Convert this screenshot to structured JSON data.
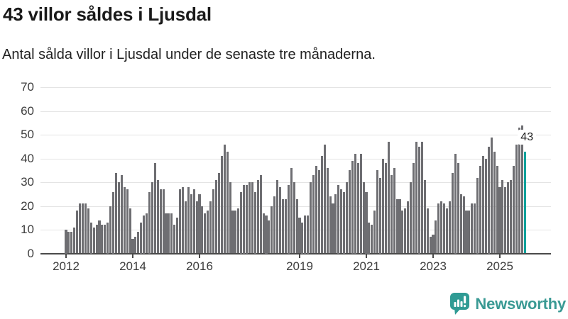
{
  "header": {
    "title": "43 villor såldes i Ljusdal",
    "subtitle": "Antal sålda villor i Ljusdal under de senaste tre månaderna."
  },
  "chart_data": {
    "type": "bar",
    "title": "43 villor såldes i Ljusdal",
    "start_month": "2012-01",
    "end_month": "2025-10",
    "values": [
      10,
      9,
      9,
      11,
      18,
      21,
      21,
      21,
      19,
      13,
      11,
      12,
      14,
      12,
      12,
      13,
      20,
      26,
      34,
      30,
      33,
      28,
      27,
      19,
      6,
      7,
      9,
      13,
      16,
      17,
      26,
      30,
      38,
      31,
      27,
      27,
      17,
      17,
      17,
      12,
      15,
      27,
      28,
      22,
      28,
      25,
      27,
      22,
      25,
      20,
      17,
      18,
      22,
      27,
      31,
      34,
      41,
      46,
      43,
      30,
      18,
      18,
      19,
      26,
      29,
      29,
      30,
      30,
      26,
      31,
      33,
      17,
      16,
      14,
      20,
      24,
      31,
      28,
      23,
      23,
      29,
      36,
      30,
      23,
      15,
      13,
      16,
      16,
      30,
      33,
      37,
      35,
      41,
      46,
      36,
      24,
      21,
      25,
      29,
      27,
      26,
      30,
      35,
      39,
      42,
      38,
      42,
      30,
      26,
      13,
      12,
      18,
      35,
      32,
      40,
      38,
      47,
      33,
      36,
      23,
      23,
      18,
      19,
      22,
      30,
      38,
      47,
      45,
      47,
      31,
      19,
      7,
      8,
      14,
      21,
      22,
      21,
      19,
      22,
      34,
      42,
      38,
      25,
      24,
      18,
      18,
      21,
      21,
      32,
      37,
      41,
      40,
      45,
      49,
      43,
      37,
      28,
      31,
      28,
      30,
      31,
      37,
      46,
      53,
      54,
      43
    ],
    "ylim": [
      0,
      70
    ],
    "yticks": [
      0,
      10,
      20,
      30,
      40,
      50,
      60,
      70
    ],
    "xticks": [
      {
        "label": "2012",
        "month_index": 0
      },
      {
        "label": "2014",
        "month_index": 24
      },
      {
        "label": "2016",
        "month_index": 48
      },
      {
        "label": "2019",
        "month_index": 84
      },
      {
        "label": "2021",
        "month_index": 108
      },
      {
        "label": "2023",
        "month_index": 132
      },
      {
        "label": "2025",
        "month_index": 156
      }
    ],
    "grid": true,
    "legend": "none",
    "bar_color": "#6e6e72",
    "highlight": {
      "index": 165,
      "value": 43,
      "label": "43",
      "color": "#00a29c"
    }
  },
  "footer": {
    "brand": "Newsworthy",
    "brand_color": "#3a9a94",
    "icon": "newsworthy-speech-bubble-bar-chart-icon"
  }
}
